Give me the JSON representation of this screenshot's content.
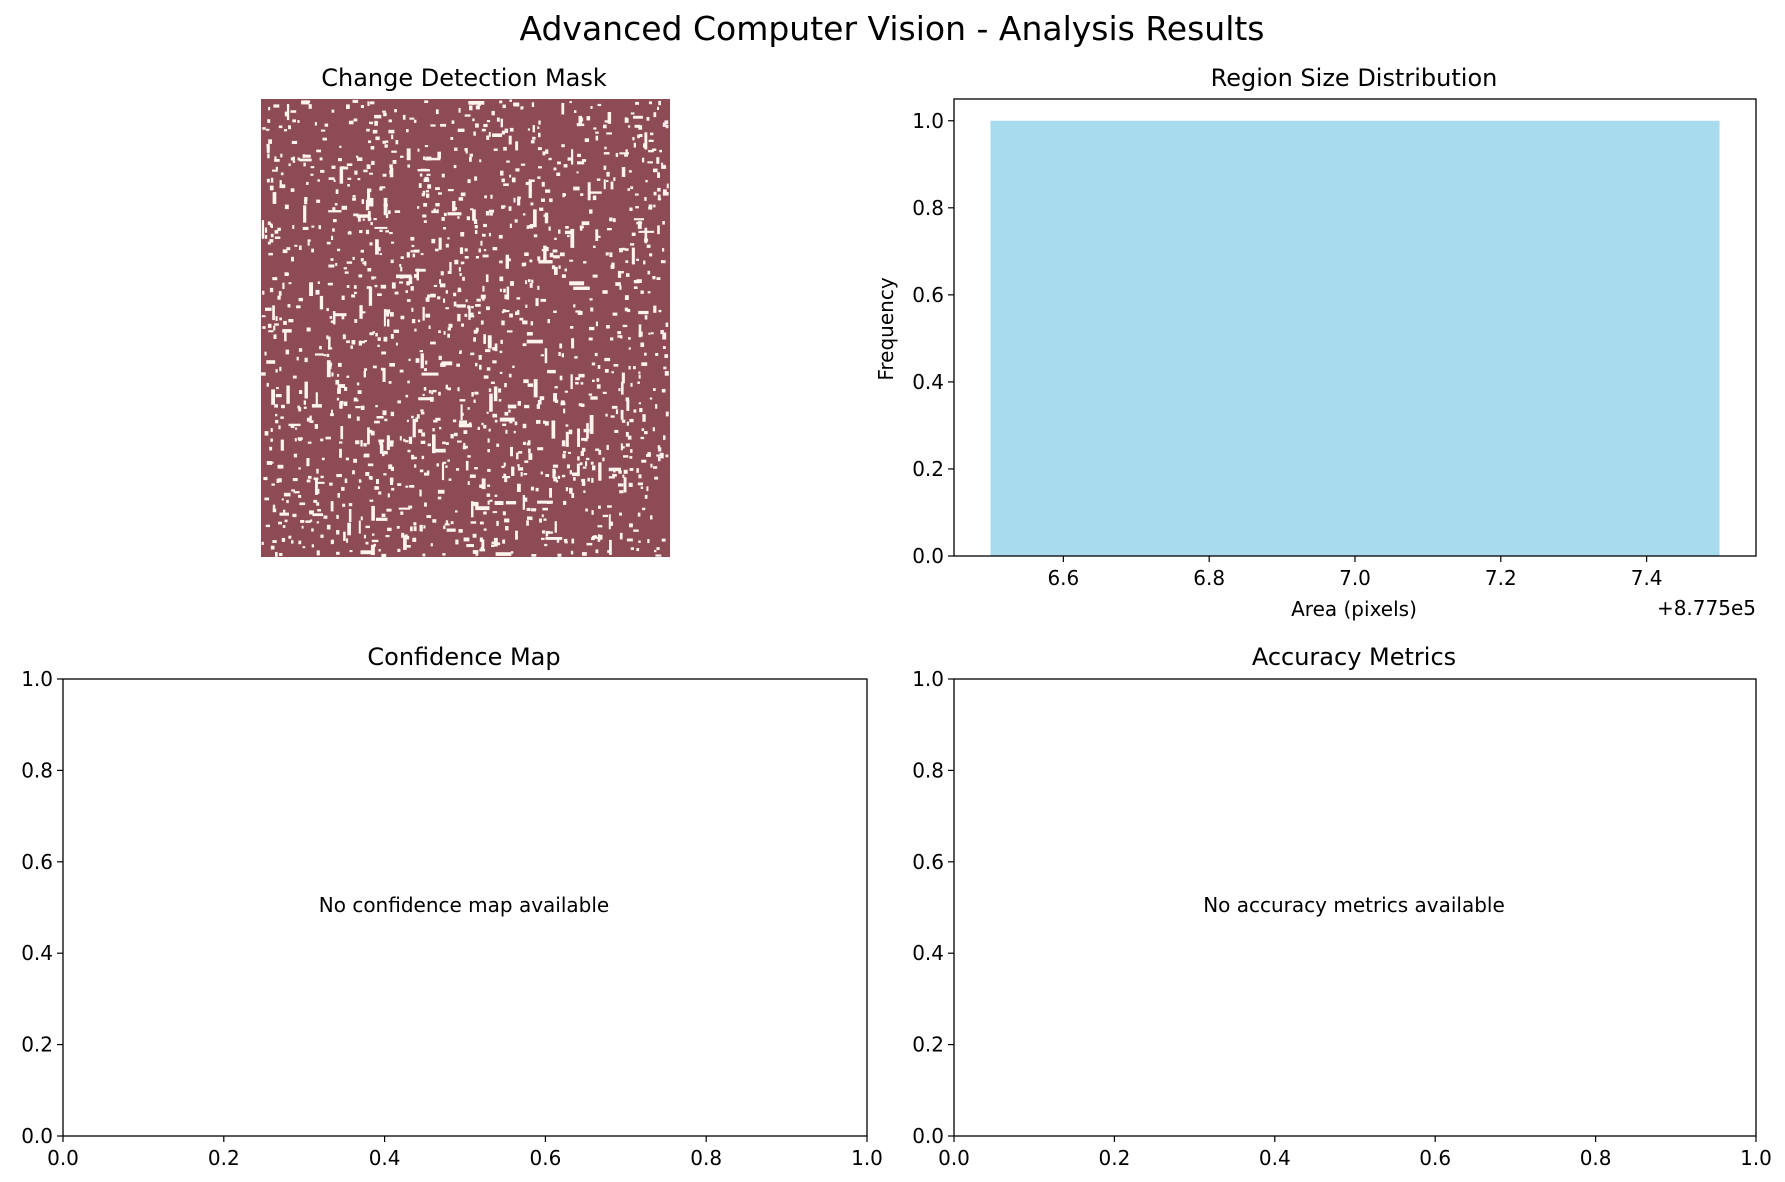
{
  "figure": {
    "title": "Advanced Computer Vision - Analysis Results"
  },
  "colors": {
    "mask_background": "#8d4b55",
    "mask_change": "#fdf4ee",
    "histogram_bar": "#a8dbee",
    "axis": "#000000"
  },
  "chart_data": [
    {
      "type": "heatmap",
      "title": "Change Detection Mask",
      "axis_visible": false,
      "description_values": {
        "background_class": 0,
        "change_class": 1
      }
    },
    {
      "type": "bar",
      "title": "Region Size Distribution",
      "xlabel": "Area (pixels)",
      "ylabel": "Frequency",
      "x_offset_label": "+8.775e5",
      "bins": [
        {
          "x_start": 6.5,
          "x_end": 7.5,
          "value": 1.0
        }
      ],
      "xlim": [
        6.45,
        7.55
      ],
      "ylim": [
        0,
        1.05
      ],
      "xticks": [
        "6.6",
        "6.8",
        "7.0",
        "7.2",
        "7.4"
      ],
      "yticks": [
        "0.0",
        "0.2",
        "0.4",
        "0.6",
        "0.8",
        "1.0"
      ],
      "grid": false
    },
    {
      "type": "scatter",
      "title": "Confidence Map",
      "message": "No confidence map available",
      "xlim": [
        0,
        1
      ],
      "ylim": [
        0,
        1
      ],
      "xticks": [
        "0.0",
        "0.2",
        "0.4",
        "0.6",
        "0.8",
        "1.0"
      ],
      "yticks": [
        "0.0",
        "0.2",
        "0.4",
        "0.6",
        "0.8",
        "1.0"
      ],
      "grid": false
    },
    {
      "type": "scatter",
      "title": "Accuracy Metrics",
      "message": "No accuracy metrics available",
      "xlim": [
        0,
        1
      ],
      "ylim": [
        0,
        1
      ],
      "xticks": [
        "0.0",
        "0.2",
        "0.4",
        "0.6",
        "0.8",
        "1.0"
      ],
      "yticks": [
        "0.0",
        "0.2",
        "0.4",
        "0.6",
        "0.8",
        "1.0"
      ],
      "grid": false
    }
  ]
}
